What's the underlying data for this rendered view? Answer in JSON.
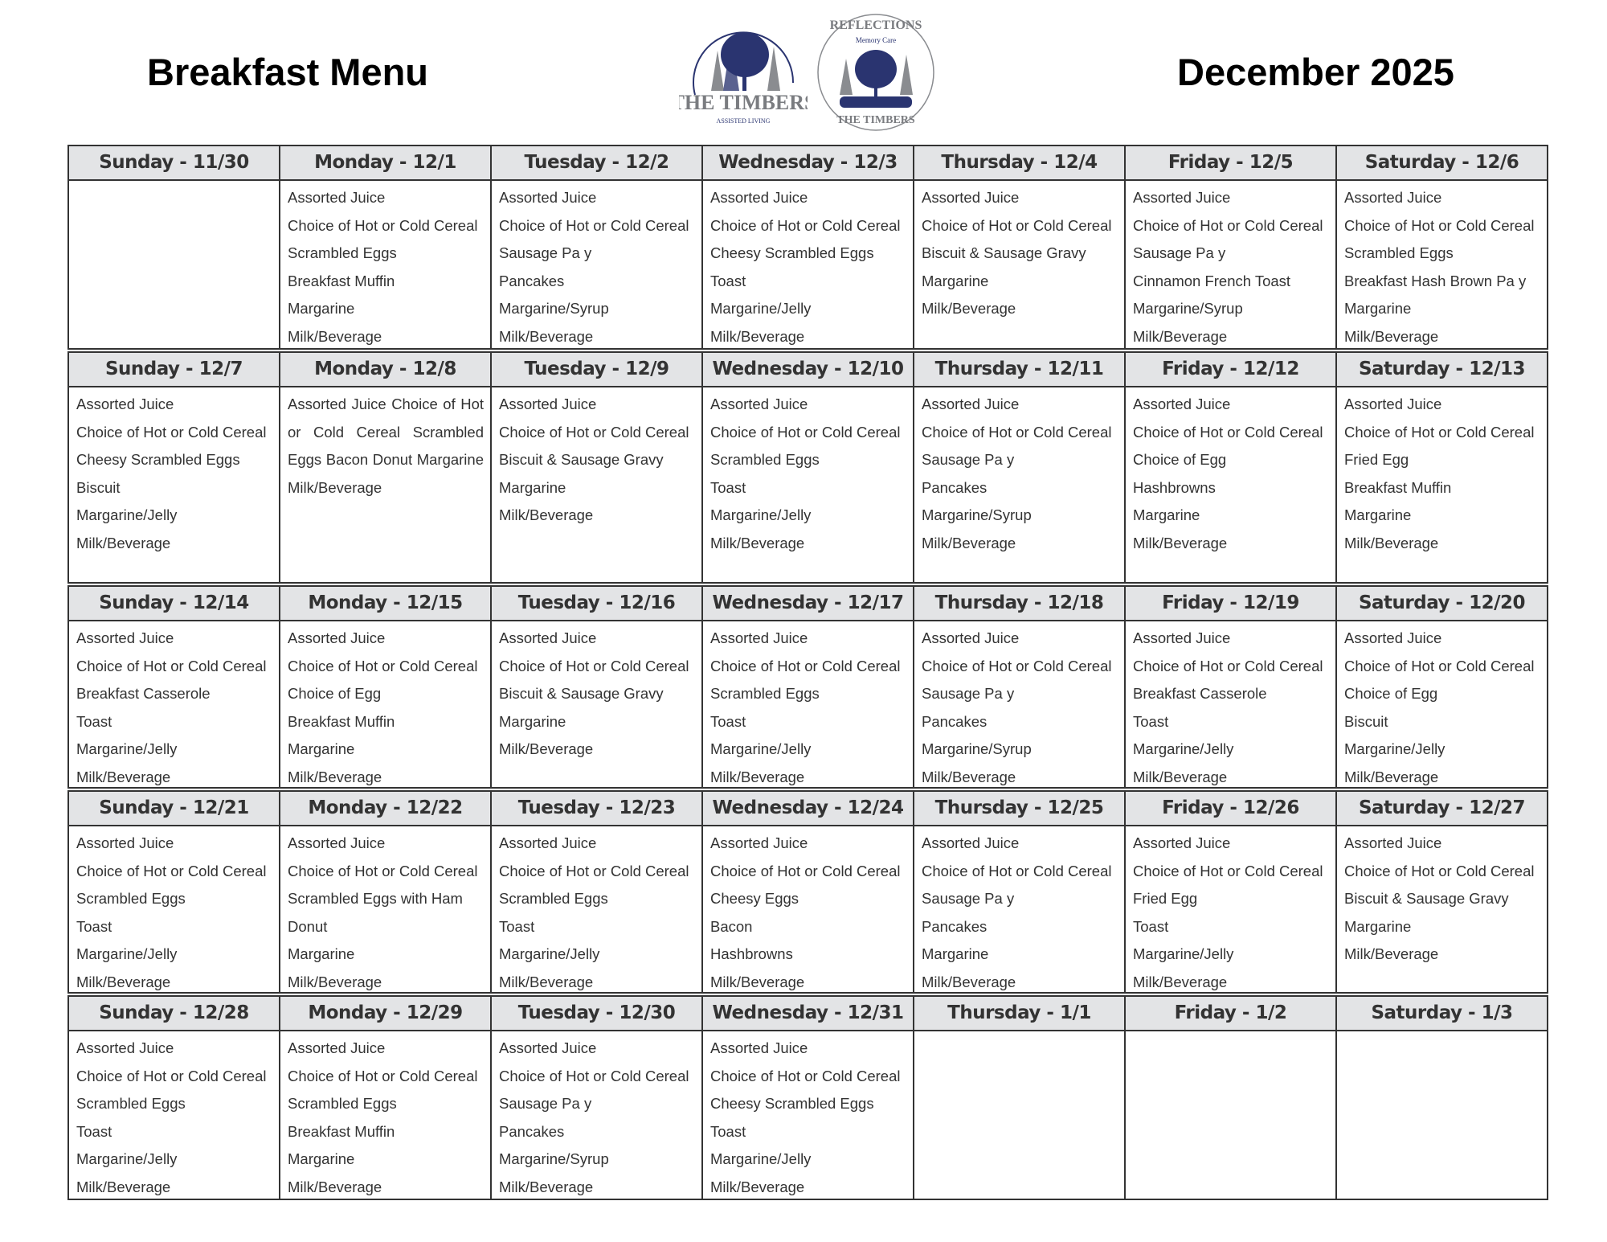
{
  "header": {
    "title": "Breakfast Menu",
    "month": "December 2025",
    "logos": [
      {
        "name": "The Timbers Assisted Living",
        "text": "THE TIMBERS ASSISTED LIVING"
      },
      {
        "name": "Reflections Memory Care at The Timbers",
        "text": "REFLECTIONS Memory Care at THE TIMBERS"
      }
    ],
    "colors": {
      "logo_navy": "#2a3470",
      "logo_gray": "#8a8c90",
      "header_bg": "#e3e4e6"
    }
  },
  "weeks": [
    {
      "days": [
        {
          "label": "Sunday - 11/30",
          "items": []
        },
        {
          "label": "Monday - 12/1",
          "items": [
            "Assorted Juice",
            "Choice of Hot or Cold Cereal",
            "Scrambled Eggs",
            "Breakfast Muffin",
            "Margarine",
            "Milk/Beverage"
          ]
        },
        {
          "label": "Tuesday - 12/2",
          "items": [
            "Assorted Juice",
            "Choice of Hot or Cold Cereal",
            "Sausage Pa y",
            "Pancakes",
            "Margarine/Syrup",
            "Milk/Beverage"
          ]
        },
        {
          "label": "Wednesday - 12/3",
          "items": [
            "Assorted Juice",
            "Choice of Hot or Cold Cereal",
            "Cheesy Scrambled Eggs",
            "Toast",
            "Margarine/Jelly",
            "Milk/Beverage"
          ]
        },
        {
          "label": "Thursday - 12/4",
          "items": [
            "Assorted Juice",
            "Choice of Hot or Cold Cereal",
            "Biscuit & Sausage Gravy",
            "Margarine",
            "Milk/Beverage"
          ]
        },
        {
          "label": "Friday - 12/5",
          "items": [
            "Assorted Juice",
            "Choice of Hot or Cold Cereal",
            "Sausage Pa y",
            "Cinnamon French Toast",
            "Margarine/Syrup",
            "Milk/Beverage"
          ]
        },
        {
          "label": "Saturday - 12/6",
          "items": [
            "Assorted Juice",
            "Choice of Hot or Cold Cereal",
            "Scrambled Eggs",
            "Breakfast Hash Brown Pa y",
            "Margarine",
            "Milk/Beverage"
          ]
        }
      ]
    },
    {
      "days": [
        {
          "label": "Sunday - 12/7",
          "items": [
            "Assorted Juice",
            "Choice of Hot or Cold Cereal",
            "Cheesy Scrambled Eggs",
            "Biscuit",
            "Margarine/Jelly",
            "Milk/Beverage"
          ]
        },
        {
          "label": "Monday - 12/8",
          "paragraph": "Assorted Juice Choice of Hot or Cold Cereal Scrambled Eggs Bacon Donut Margarine Milk/Beverage"
        },
        {
          "label": "Tuesday - 12/9",
          "items": [
            "Assorted Juice",
            "Choice of Hot or Cold Cereal",
            "Biscuit & Sausage Gravy",
            "Margarine",
            "Milk/Beverage"
          ]
        },
        {
          "label": "Wednesday - 12/10",
          "items": [
            "Assorted Juice",
            "Choice of Hot or Cold Cereal",
            "Scrambled Eggs",
            "Toast",
            "Margarine/Jelly",
            "Milk/Beverage"
          ]
        },
        {
          "label": "Thursday - 12/11",
          "items": [
            "Assorted Juice",
            "Choice of Hot or Cold Cereal",
            "Sausage Pa y",
            "Pancakes",
            "Margarine/Syrup",
            "Milk/Beverage"
          ]
        },
        {
          "label": "Friday - 12/12",
          "items": [
            "Assorted Juice",
            "Choice of Hot or Cold Cereal",
            "Choice of Egg",
            "Hashbrowns",
            "Margarine",
            "Milk/Beverage"
          ]
        },
        {
          "label": "Saturday - 12/13",
          "items": [
            "Assorted Juice",
            "Choice of Hot or Cold Cereal",
            "Fried Egg",
            "Breakfast Muffin",
            "Margarine",
            "Milk/Beverage"
          ]
        }
      ]
    },
    {
      "days": [
        {
          "label": "Sunday - 12/14",
          "items": [
            "Assorted Juice",
            "Choice of Hot or Cold Cereal",
            "Breakfast Casserole",
            "Toast",
            "Margarine/Jelly",
            "Milk/Beverage"
          ]
        },
        {
          "label": "Monday - 12/15",
          "items": [
            "Assorted Juice",
            "Choice of Hot or Cold Cereal",
            "Choice of Egg",
            "Breakfast Muffin",
            "Margarine",
            "Milk/Beverage"
          ]
        },
        {
          "label": "Tuesday - 12/16",
          "items": [
            "Assorted Juice",
            "Choice of Hot or Cold Cereal",
            "Biscuit & Sausage Gravy",
            "Margarine",
            "Milk/Beverage"
          ]
        },
        {
          "label": "Wednesday - 12/17",
          "items": [
            "Assorted Juice",
            "Choice of Hot or Cold Cereal",
            "Scrambled Eggs",
            "Toast",
            "Margarine/Jelly",
            "Milk/Beverage"
          ]
        },
        {
          "label": "Thursday - 12/18",
          "items": [
            "Assorted Juice",
            "Choice of Hot or Cold Cereal",
            "Sausage Pa y",
            "Pancakes",
            "Margarine/Syrup",
            "Milk/Beverage"
          ]
        },
        {
          "label": "Friday - 12/19",
          "items": [
            "Assorted Juice",
            "Choice of Hot or Cold Cereal",
            "Breakfast Casserole",
            "Toast",
            "Margarine/Jelly",
            "Milk/Beverage"
          ]
        },
        {
          "label": "Saturday - 12/20",
          "items": [
            "Assorted Juice",
            "Choice of Hot or Cold Cereal",
            "Choice of Egg",
            "Biscuit",
            "Margarine/Jelly",
            "Milk/Beverage"
          ]
        }
      ]
    },
    {
      "days": [
        {
          "label": "Sunday - 12/21",
          "items": [
            "Assorted Juice",
            "Choice of Hot or Cold Cereal",
            "Scrambled Eggs",
            "Toast",
            "Margarine/Jelly",
            "Milk/Beverage"
          ]
        },
        {
          "label": "Monday - 12/22",
          "items": [
            "Assorted Juice",
            "Choice of Hot or Cold Cereal",
            "Scrambled Eggs with Ham",
            "Donut",
            "Margarine",
            "Milk/Beverage"
          ]
        },
        {
          "label": "Tuesday - 12/23",
          "items": [
            "Assorted Juice",
            "Choice of Hot or Cold Cereal",
            "Scrambled Eggs",
            "Toast",
            "Margarine/Jelly",
            "Milk/Beverage"
          ]
        },
        {
          "label": "Wednesday - 12/24",
          "items": [
            "Assorted Juice",
            "Choice of Hot or Cold Cereal",
            "Cheesy Eggs",
            "Bacon",
            "Hashbrowns",
            "Milk/Beverage"
          ]
        },
        {
          "label": "Thursday - 12/25",
          "items": [
            "Assorted Juice",
            "Choice of Hot or Cold Cereal",
            "Sausage Pa y",
            "Pancakes",
            "Margarine",
            "Milk/Beverage"
          ]
        },
        {
          "label": "Friday - 12/26",
          "items": [
            "Assorted Juice",
            "Choice of Hot or Cold Cereal",
            "Fried Egg",
            "Toast",
            "Margarine/Jelly",
            "Milk/Beverage"
          ]
        },
        {
          "label": "Saturday - 12/27",
          "items": [
            "Assorted Juice",
            "Choice of Hot or Cold Cereal",
            "Biscuit & Sausage Gravy",
            "Margarine",
            "Milk/Beverage"
          ]
        }
      ]
    },
    {
      "days": [
        {
          "label": "Sunday - 12/28",
          "items": [
            "Assorted Juice",
            "Choice of Hot or Cold Cereal",
            "Scrambled Eggs",
            "Toast",
            "Margarine/Jelly",
            "Milk/Beverage"
          ]
        },
        {
          "label": "Monday - 12/29",
          "items": [
            "Assorted Juice",
            "Choice of Hot or Cold Cereal",
            "Scrambled Eggs",
            "Breakfast Muffin",
            "Margarine",
            "Milk/Beverage"
          ]
        },
        {
          "label": "Tuesday - 12/30",
          "items": [
            "Assorted Juice",
            "Choice of Hot or Cold Cereal",
            "Sausage Pa y",
            "Pancakes",
            "Margarine/Syrup",
            "Milk/Beverage"
          ]
        },
        {
          "label": "Wednesday - 12/31",
          "items": [
            "Assorted Juice",
            "Choice of Hot or Cold Cereal",
            "Cheesy Scrambled Eggs",
            "Toast",
            "Margarine/Jelly",
            "Milk/Beverage"
          ]
        },
        {
          "label": "Thursday - 1/1",
          "items": []
        },
        {
          "label": "Friday - 1/2",
          "items": []
        },
        {
          "label": "Saturday - 1/3",
          "items": []
        }
      ]
    }
  ]
}
